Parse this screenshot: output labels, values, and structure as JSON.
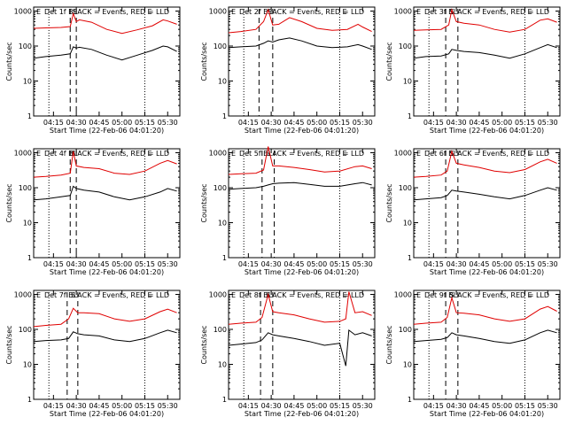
{
  "chart_data": [
    {
      "type": "line",
      "title": "Det 1f BLACK = Events, RED = LLD",
      "xlabel": "Start Time (22-Feb-06 04:01:20)",
      "ylabel": "Counts/sec",
      "x_ticks": [
        "04:15",
        "04:30",
        "04:45",
        "05:00",
        "05:15",
        "05:30"
      ],
      "y_ticks": [
        "1",
        "10",
        "100",
        "1000"
      ],
      "ylim": [
        1,
        1300
      ],
      "yscale": "log",
      "markers": {
        "E_left": "04:12",
        "S": "04:29",
        "E_right": "05:15",
        "dash_start": "04:26",
        "dash_end": "04:30"
      },
      "series": [
        {
          "color": "#e00000",
          "x": [
            "04:02",
            "04:10",
            "04:20",
            "04:26",
            "04:28",
            "04:30",
            "04:32",
            "04:40",
            "04:50",
            "05:00",
            "05:10",
            "05:20",
            "05:27",
            "05:30",
            "05:36"
          ],
          "y": [
            320,
            330,
            340,
            360,
            850,
            500,
            560,
            480,
            300,
            230,
            290,
            380,
            560,
            520,
            420
          ]
        },
        {
          "color": "#000000",
          "x": [
            "04:02",
            "04:10",
            "04:20",
            "04:26",
            "04:28",
            "04:30",
            "04:32",
            "04:40",
            "04:50",
            "05:00",
            "05:10",
            "05:20",
            "05:27",
            "05:30",
            "05:36"
          ],
          "y": [
            45,
            50,
            55,
            60,
            95,
            88,
            92,
            80,
            55,
            40,
            55,
            75,
            100,
            95,
            70
          ]
        }
      ]
    },
    {
      "type": "line",
      "title": "Det 2f BLACK = Events, RED = LLD",
      "xlabel": "Start Time (22-Feb-06 04:01:20)",
      "ylabel": "Counts/sec",
      "x_ticks": [
        "04:15",
        "04:30",
        "04:45",
        "05:00",
        "05:15",
        "05:30"
      ],
      "y_ticks": [
        "1",
        "10",
        "100",
        "1000"
      ],
      "ylim": [
        1,
        1300
      ],
      "yscale": "log",
      "markers": {
        "E_left": "04:12",
        "S": "04:29",
        "E_right": "05:15",
        "dash_start": "04:22",
        "dash_end": "04:31"
      },
      "series": [
        {
          "color": "#e00000",
          "x": [
            "04:02",
            "04:10",
            "04:20",
            "04:25",
            "04:28",
            "04:31",
            "04:35",
            "04:42",
            "04:50",
            "05:00",
            "05:10",
            "05:20",
            "05:27",
            "05:30",
            "05:36"
          ],
          "y": [
            240,
            260,
            300,
            500,
            1100,
            400,
            420,
            650,
            500,
            320,
            280,
            300,
            420,
            350,
            260
          ]
        },
        {
          "color": "#000000",
          "x": [
            "04:02",
            "04:10",
            "04:20",
            "04:25",
            "04:28",
            "04:31",
            "04:35",
            "04:42",
            "04:50",
            "05:00",
            "05:10",
            "05:20",
            "05:27",
            "05:30",
            "05:36"
          ],
          "y": [
            90,
            95,
            100,
            120,
            140,
            130,
            150,
            170,
            140,
            100,
            90,
            95,
            110,
            100,
            80
          ]
        }
      ]
    },
    {
      "type": "line",
      "title": "Det 3f BLACK = Events, RED = LLD",
      "xlabel": "Start Time (22-Feb-06 04:01:20)",
      "ylabel": "Counts/sec",
      "x_ticks": [
        "04:15",
        "04:30",
        "04:45",
        "05:00",
        "05:15",
        "05:30"
      ],
      "y_ticks": [
        "1",
        "10",
        "100",
        "1000"
      ],
      "ylim": [
        1,
        1300
      ],
      "yscale": "log",
      "markers": {
        "E_left": "04:12",
        "S": "04:27",
        "E_right": "05:15",
        "dash_start": "04:23",
        "dash_end": "04:31"
      },
      "series": [
        {
          "color": "#e00000",
          "x": [
            "04:02",
            "04:10",
            "04:20",
            "04:25",
            "04:27",
            "04:30",
            "04:35",
            "04:45",
            "04:55",
            "05:05",
            "05:15",
            "05:25",
            "05:30",
            "05:36"
          ],
          "y": [
            280,
            290,
            300,
            400,
            1100,
            500,
            450,
            400,
            300,
            250,
            300,
            550,
            600,
            480
          ]
        },
        {
          "color": "#000000",
          "x": [
            "04:02",
            "04:10",
            "04:20",
            "04:25",
            "04:27",
            "04:30",
            "04:35",
            "04:45",
            "04:55",
            "05:05",
            "05:15",
            "05:25",
            "05:30",
            "05:36"
          ],
          "y": [
            45,
            50,
            52,
            60,
            80,
            75,
            70,
            65,
            55,
            45,
            60,
            90,
            110,
            90
          ]
        }
      ]
    },
    {
      "type": "line",
      "title": "Det 4f BLACK = Events, RED = LLD",
      "xlabel": "Start Time (22-Feb-06 04:01:20)",
      "ylabel": "Counts/sec",
      "x_ticks": [
        "04:15",
        "04:30",
        "04:45",
        "05:00",
        "05:15",
        "05:30"
      ],
      "y_ticks": [
        "1",
        "10",
        "100",
        "1000"
      ],
      "ylim": [
        1,
        1300
      ],
      "yscale": "log",
      "markers": {
        "E_left": "04:12",
        "S": "04:28",
        "E_right": "05:15",
        "dash_start": "04:26",
        "dash_end": "04:30"
      },
      "series": [
        {
          "color": "#e00000",
          "x": [
            "04:02",
            "04:10",
            "04:20",
            "04:26",
            "04:28",
            "04:30",
            "04:35",
            "04:45",
            "04:55",
            "05:05",
            "05:15",
            "05:25",
            "05:30",
            "05:36"
          ],
          "y": [
            200,
            210,
            230,
            260,
            1100,
            420,
            380,
            350,
            260,
            240,
            300,
            500,
            600,
            480
          ]
        },
        {
          "color": "#000000",
          "x": [
            "04:02",
            "04:10",
            "04:20",
            "04:26",
            "04:28",
            "04:30",
            "04:35",
            "04:45",
            "04:55",
            "05:05",
            "05:15",
            "05:25",
            "05:30",
            "05:36"
          ],
          "y": [
            45,
            48,
            55,
            60,
            110,
            95,
            85,
            75,
            55,
            45,
            55,
            75,
            95,
            80
          ]
        }
      ]
    },
    {
      "type": "line",
      "title": "Det 5f BLACK = Events, RED = LLD",
      "xlabel": "Start Time (22-Feb-06 04:01:20)",
      "ylabel": "Counts/sec",
      "x_ticks": [
        "04:15",
        "04:30",
        "04:45",
        "05:00",
        "05:15",
        "05:30"
      ],
      "y_ticks": [
        "1",
        "10",
        "100",
        "1000"
      ],
      "ylim": [
        1,
        1300
      ],
      "yscale": "log",
      "markers": {
        "E_left": "04:12",
        "S": "04:28",
        "E_right": "05:15",
        "dash_start": "04:24",
        "dash_end": "04:32"
      },
      "series": [
        {
          "color": "#e00000",
          "x": [
            "04:02",
            "04:10",
            "04:20",
            "04:25",
            "04:28",
            "04:31",
            "04:35",
            "04:45",
            "04:55",
            "05:05",
            "05:15",
            "05:25",
            "05:30",
            "05:36"
          ],
          "y": [
            240,
            250,
            260,
            320,
            1500,
            420,
            420,
            380,
            330,
            280,
            300,
            400,
            420,
            350
          ]
        },
        {
          "color": "#000000",
          "x": [
            "04:02",
            "04:10",
            "04:20",
            "04:25",
            "04:28",
            "04:31",
            "04:35",
            "04:45",
            "04:55",
            "05:05",
            "05:15",
            "05:25",
            "05:30",
            "05:36"
          ],
          "y": [
            90,
            95,
            100,
            110,
            120,
            130,
            135,
            140,
            125,
            110,
            110,
            130,
            140,
            120
          ]
        }
      ]
    },
    {
      "type": "line",
      "title": "Det 6f BLACK = Events, RED = LLD",
      "xlabel": "Start Time (22-Feb-06 04:01:20)",
      "ylabel": "Counts/sec",
      "x_ticks": [
        "04:15",
        "04:30",
        "04:45",
        "05:00",
        "05:15",
        "05:30"
      ],
      "y_ticks": [
        "1",
        "10",
        "100",
        "1000"
      ],
      "ylim": [
        1,
        1300
      ],
      "yscale": "log",
      "markers": {
        "E_left": "04:12",
        "S": "04:27",
        "E_right": "05:15",
        "dash_start": "04:23",
        "dash_end": "04:31"
      },
      "series": [
        {
          "color": "#e00000",
          "x": [
            "04:02",
            "04:10",
            "04:20",
            "04:24",
            "04:27",
            "04:30",
            "04:35",
            "04:45",
            "04:55",
            "05:05",
            "05:15",
            "05:25",
            "05:30",
            "05:36"
          ],
          "y": [
            200,
            210,
            230,
            300,
            1100,
            500,
            450,
            380,
            300,
            270,
            330,
            550,
            650,
            500
          ]
        },
        {
          "color": "#000000",
          "x": [
            "04:02",
            "04:10",
            "04:20",
            "04:24",
            "04:27",
            "04:30",
            "04:35",
            "04:45",
            "04:55",
            "05:05",
            "05:15",
            "05:25",
            "05:30",
            "05:36"
          ],
          "y": [
            45,
            48,
            52,
            60,
            85,
            80,
            75,
            65,
            55,
            48,
            60,
            85,
            100,
            85
          ]
        }
      ]
    },
    {
      "type": "line",
      "title": "Det 7f BLACK = Events, RED = LLD",
      "xlabel": "Start Time (22-Feb-06 04:01:20)",
      "ylabel": "Counts/sec",
      "x_ticks": [
        "04:15",
        "04:30",
        "04:45",
        "05:00",
        "05:15",
        "05:30"
      ],
      "y_ticks": [
        "1",
        "10",
        "100",
        "1000"
      ],
      "ylim": [
        1,
        1300
      ],
      "yscale": "log",
      "markers": {
        "E_left": "04:12",
        "S": "04:28",
        "E_right": "05:15",
        "dash_start": "04:24",
        "dash_end": "04:31"
      },
      "series": [
        {
          "color": "#e00000",
          "x": [
            "04:02",
            "04:10",
            "04:20",
            "04:25",
            "04:28",
            "04:31",
            "04:35",
            "04:45",
            "04:55",
            "05:05",
            "05:15",
            "05:25",
            "05:30",
            "05:36"
          ],
          "y": [
            120,
            130,
            140,
            200,
            400,
            300,
            300,
            280,
            200,
            170,
            200,
            320,
            380,
            300
          ]
        },
        {
          "color": "#000000",
          "x": [
            "04:02",
            "04:10",
            "04:20",
            "04:25",
            "04:28",
            "04:31",
            "04:35",
            "04:45",
            "04:55",
            "05:05",
            "05:15",
            "05:25",
            "05:30",
            "05:36"
          ],
          "y": [
            45,
            48,
            50,
            55,
            85,
            75,
            70,
            65,
            50,
            45,
            55,
            80,
            95,
            80
          ]
        }
      ]
    },
    {
      "type": "line",
      "title": "Det 8f BLACK = Events, RED = LLD",
      "xlabel": "Start Time (22-Feb-06 04:01:20)",
      "ylabel": "Counts/sec",
      "x_ticks": [
        "04:15",
        "04:30",
        "04:45",
        "05:00",
        "05:15",
        "05:30"
      ],
      "y_ticks": [
        "1",
        "10",
        "100",
        "1000"
      ],
      "ylim": [
        1,
        1300
      ],
      "yscale": "log",
      "markers": {
        "E_left": "04:12",
        "S": "04:28",
        "E_right": "05:15",
        "dash_start": "04:23",
        "dash_end": "04:31"
      },
      "series": [
        {
          "color": "#e00000",
          "x": [
            "04:02",
            "04:10",
            "04:20",
            "04:24",
            "04:28",
            "04:31",
            "04:35",
            "04:45",
            "04:55",
            "05:05",
            "05:15",
            "05:19",
            "05:21",
            "05:25",
            "05:30",
            "05:36"
          ],
          "y": [
            140,
            150,
            160,
            220,
            1000,
            320,
            300,
            260,
            200,
            160,
            170,
            200,
            1200,
            300,
            320,
            250
          ]
        },
        {
          "color": "#000000",
          "x": [
            "04:02",
            "04:10",
            "04:20",
            "04:24",
            "04:28",
            "04:31",
            "04:35",
            "04:45",
            "04:55",
            "05:05",
            "05:15",
            "05:19",
            "05:21",
            "05:25",
            "05:30",
            "05:36"
          ],
          "y": [
            35,
            38,
            42,
            50,
            80,
            70,
            65,
            55,
            45,
            35,
            40,
            9,
            95,
            70,
            80,
            65
          ]
        }
      ]
    },
    {
      "type": "line",
      "title": "Det 9f BLACK = Events, RED = LLD",
      "xlabel": "Start Time (22-Feb-06 04:01:20)",
      "ylabel": "Counts/sec",
      "x_ticks": [
        "04:15",
        "04:30",
        "04:45",
        "05:00",
        "05:15",
        "05:30"
      ],
      "y_ticks": [
        "1",
        "10",
        "100",
        "1000"
      ],
      "ylim": [
        1,
        1300
      ],
      "yscale": "log",
      "markers": {
        "E_left": "04:12",
        "S": "04:27",
        "E_right": "05:15",
        "dash_start": "04:23",
        "dash_end": "04:31"
      },
      "series": [
        {
          "color": "#e00000",
          "x": [
            "04:02",
            "04:10",
            "04:20",
            "04:24",
            "04:27",
            "04:30",
            "04:35",
            "04:45",
            "04:55",
            "05:05",
            "05:15",
            "05:25",
            "05:30",
            "05:36"
          ],
          "y": [
            140,
            150,
            160,
            220,
            800,
            300,
            290,
            260,
            200,
            170,
            200,
            380,
            450,
            330
          ]
        },
        {
          "color": "#000000",
          "x": [
            "04:02",
            "04:10",
            "04:20",
            "04:24",
            "04:27",
            "04:30",
            "04:35",
            "04:45",
            "04:55",
            "05:05",
            "05:15",
            "05:25",
            "05:30",
            "05:36"
          ],
          "y": [
            45,
            48,
            52,
            58,
            80,
            70,
            65,
            55,
            45,
            40,
            50,
            80,
            95,
            80
          ]
        }
      ]
    }
  ],
  "colors": {
    "lld": "#e00000",
    "events": "#000000"
  },
  "labels": {
    "E": "E",
    "S": "S"
  }
}
